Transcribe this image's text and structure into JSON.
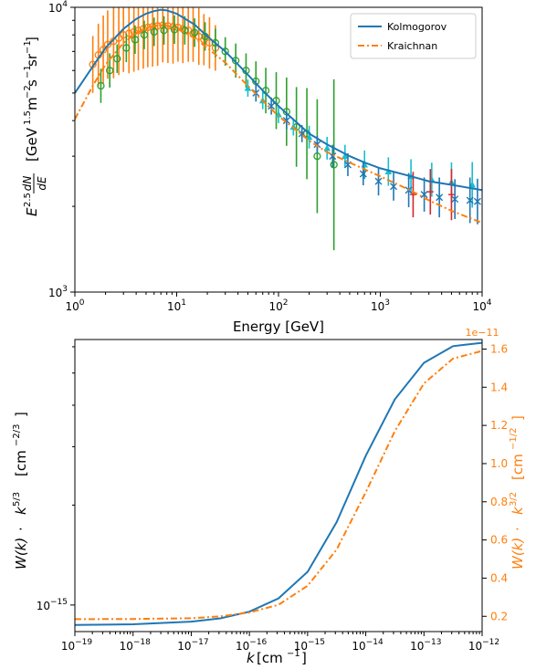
{
  "chart_data": [
    {
      "type": "line",
      "xlabel": "Energy [GeV]",
      "ylabel_parts": {
        "e": "E",
        "exp": "2.5",
        "num": "dN",
        "den": "dE",
        "units": "[GeV",
        "u1": "1.5",
        "m": "m",
        "u2": "−2",
        "s": "s",
        "u3": "−1",
        "sr": "sr",
        "u4": "−1",
        "close": "]"
      },
      "x_scale": "log",
      "y_scale": "log",
      "xlim": [
        1,
        10000
      ],
      "ylim": [
        1000,
        10000
      ],
      "x_ticks": [
        {
          "v": 1,
          "base": "10",
          "exp": "0"
        },
        {
          "v": 10,
          "base": "10",
          "exp": "1"
        },
        {
          "v": 100,
          "base": "10",
          "exp": "2"
        },
        {
          "v": 1000,
          "base": "10",
          "exp": "3"
        },
        {
          "v": 10000,
          "base": "10",
          "exp": "4"
        }
      ],
      "y_ticks": [
        {
          "v": 1000,
          "base": "10",
          "exp": "3"
        },
        {
          "v": 10000,
          "base": "10",
          "exp": "4"
        }
      ],
      "legend": {
        "position": "top-right",
        "entries": [
          {
            "label": "Kolmogorov",
            "color": "#1f77b4",
            "style": "solid"
          },
          {
            "label": "Kraichnan",
            "color": "#ff7f0e",
            "style": "dashdot"
          }
        ]
      },
      "series": [
        {
          "name": "Kolmogorov",
          "color": "#1f77b4",
          "style": "solid",
          "x": [
            1,
            1.5,
            2,
            3,
            4,
            5,
            6,
            7,
            8,
            10,
            15,
            20,
            30,
            50,
            70,
            100,
            150,
            200,
            300,
            500,
            700,
            1000,
            2000,
            3000,
            5000,
            10000
          ],
          "y": [
            5000,
            6200,
            7200,
            8400,
            9100,
            9500,
            9700,
            9800,
            9750,
            9500,
            8700,
            7900,
            7000,
            5800,
            5100,
            4500,
            3950,
            3600,
            3300,
            3000,
            2850,
            2720,
            2550,
            2450,
            2380,
            2280
          ]
        },
        {
          "name": "Kraichnan",
          "color": "#ff7f0e",
          "style": "dashdot",
          "x": [
            1,
            1.5,
            2,
            3,
            4,
            5,
            6,
            7,
            8,
            10,
            15,
            20,
            30,
            50,
            70,
            100,
            150,
            200,
            300,
            500,
            700,
            1000,
            2000,
            3000,
            5000,
            10000
          ],
          "y": [
            4050,
            5300,
            6300,
            7500,
            8100,
            8450,
            8600,
            8650,
            8600,
            8450,
            7800,
            7200,
            6400,
            5300,
            4700,
            4150,
            3700,
            3400,
            3100,
            2850,
            2700,
            2550,
            2270,
            2100,
            1930,
            1750
          ]
        }
      ],
      "data_markers": [
        {
          "color": "#ff7f0e",
          "marker": "circle",
          "x": [
            1.5,
            1.7,
            1.9,
            2.1,
            2.4,
            2.7,
            3.0,
            3.4,
            3.8,
            4.2,
            4.7,
            5.2,
            5.8,
            6.5,
            7.3,
            8.2,
            9.2,
            10.3,
            11.5,
            13,
            14.5,
            16.5,
            18.5,
            21,
            24
          ],
          "y": [
            6300,
            6800,
            7100,
            7400,
            7600,
            7800,
            8000,
            8100,
            8200,
            8300,
            8400,
            8500,
            8550,
            8600,
            8650,
            8600,
            8550,
            8500,
            8400,
            8300,
            8100,
            7900,
            7700,
            7500,
            7200
          ],
          "err": [
            0.1,
            0.11,
            0.12,
            0.12,
            0.13,
            0.13,
            0.13,
            0.14,
            0.14,
            0.14,
            0.14,
            0.14,
            0.14,
            0.14,
            0.13,
            0.13,
            0.13,
            0.12,
            0.12,
            0.11,
            0.1,
            0.1,
            0.09,
            0.09,
            0.08
          ]
        },
        {
          "color": "#2ca02c",
          "marker": "circle",
          "x": [
            1.8,
            2.2,
            2.6,
            3.2,
            3.9,
            4.8,
            6,
            7.5,
            9.5,
            12,
            15,
            19,
            24,
            30,
            38,
            48,
            60,
            75,
            95,
            120,
            150,
            190,
            240,
            350
          ],
          "y": [
            5300,
            6000,
            6600,
            7200,
            7700,
            8000,
            8200,
            8300,
            8350,
            8300,
            8150,
            7900,
            7500,
            7000,
            6500,
            6000,
            5500,
            5100,
            4700,
            4300,
            3800,
            3600,
            3000,
            2800
          ],
          "err": [
            0.06,
            0.06,
            0.05,
            0.05,
            0.05,
            0.05,
            0.05,
            0.05,
            0.05,
            0.05,
            0.05,
            0.05,
            0.05,
            0.05,
            0.06,
            0.06,
            0.07,
            0.08,
            0.1,
            0.12,
            0.14,
            0.16,
            0.2,
            0.3
          ]
        },
        {
          "color": "#17becf",
          "marker": "triangle",
          "x": [
            50,
            70,
            100,
            140,
            200,
            300,
            450,
            700,
            1200,
            2000,
            3200,
            5000,
            8000
          ],
          "y": [
            5200,
            4700,
            4200,
            3800,
            3500,
            3200,
            3000,
            2800,
            2650,
            2550,
            2480,
            2430,
            2380
          ],
          "err": [
            0.03,
            0.03,
            0.03,
            0.03,
            0.04,
            0.04,
            0.04,
            0.05,
            0.05,
            0.06,
            0.06,
            0.07,
            0.08
          ]
        },
        {
          "color": "#1f77b4",
          "marker": "x",
          "x": [
            60,
            85,
            120,
            170,
            240,
            340,
            480,
            680,
            960,
            1350,
            1900,
            2700,
            3800,
            5400,
            7600,
            9000
          ],
          "y": [
            5000,
            4500,
            4000,
            3600,
            3300,
            3000,
            2800,
            2600,
            2450,
            2350,
            2280,
            2200,
            2150,
            2120,
            2100,
            2080
          ],
          "err": [
            0.03,
            0.03,
            0.03,
            0.03,
            0.03,
            0.04,
            0.04,
            0.04,
            0.05,
            0.05,
            0.06,
            0.06,
            0.07,
            0.07,
            0.08,
            0.08
          ]
        },
        {
          "color": "#d62728",
          "marker": "cross",
          "x": [
            2100,
            3100,
            5000
          ],
          "y": [
            2200,
            2250,
            2200
          ],
          "err": [
            0.08,
            0.08,
            0.09
          ]
        }
      ]
    },
    {
      "type": "line",
      "xlabel_parts": {
        "k": "k",
        "units": "[cm",
        "exp": "−1",
        "close": "]"
      },
      "ylabel_left_parts": {
        "w": "W(k)",
        "dot": " · ",
        "k": "k",
        "exp": "5/3",
        "units": "[cm",
        "uexp": "−2/3",
        "close": "]"
      },
      "ylabel_right_parts": {
        "w": "W(k)",
        "dot": " · ",
        "k": "k",
        "exp": "3/2",
        "units": "[cm",
        "uexp": "−1/2",
        "close": "]"
      },
      "right_offset": "1e−11",
      "x_scale": "log",
      "xlim": [
        1e-19,
        1e-12
      ],
      "x_ticks": [
        {
          "v": -19,
          "base": "10",
          "exp": "−19"
        },
        {
          "v": -18,
          "base": "10",
          "exp": "−18"
        },
        {
          "v": -17,
          "base": "10",
          "exp": "−17"
        },
        {
          "v": -16,
          "base": "10",
          "exp": "−16"
        },
        {
          "v": -15,
          "base": "10",
          "exp": "−15"
        },
        {
          "v": -14,
          "base": "10",
          "exp": "−14"
        },
        {
          "v": -13,
          "base": "10",
          "exp": "−13"
        },
        {
          "v": -12,
          "base": "10",
          "exp": "−12"
        }
      ],
      "left_y_scale": "log",
      "left_ylim_log10": [
        -15.08,
        -14.2
      ],
      "left_y_ticks": [
        {
          "v": -15,
          "base": "10",
          "exp": "−15"
        }
      ],
      "right_y_scale": "linear",
      "right_ylim": [
        0.12,
        1.65
      ],
      "right_y_ticks": [
        "0.2",
        "0.4",
        "0.6",
        "0.8",
        "1.0",
        "1.2",
        "1.4",
        "1.6"
      ],
      "series": [
        {
          "name": "Kolmogorov",
          "color": "#1f77b4",
          "style": "solid",
          "axis": "left",
          "x_log10": [
            -19,
            -18,
            -17,
            -16.5,
            -16,
            -15.5,
            -15,
            -14.5,
            -14,
            -13.5,
            -13,
            -12.5,
            -12
          ],
          "y_log10": [
            -15.06,
            -15.058,
            -15.05,
            -15.04,
            -15.02,
            -14.98,
            -14.9,
            -14.75,
            -14.55,
            -14.38,
            -14.27,
            -14.22,
            -14.21
          ]
        },
        {
          "name": "Kraichnan",
          "color": "#ff7f0e",
          "style": "dashdot",
          "axis": "right",
          "x_log10": [
            -19,
            -18,
            -17,
            -16.5,
            -16,
            -15.5,
            -15,
            -14.5,
            -14,
            -13.5,
            -13,
            -12.5,
            -12
          ],
          "y": [
            0.185,
            0.186,
            0.19,
            0.2,
            0.22,
            0.26,
            0.36,
            0.55,
            0.85,
            1.17,
            1.42,
            1.55,
            1.59
          ]
        }
      ]
    }
  ]
}
